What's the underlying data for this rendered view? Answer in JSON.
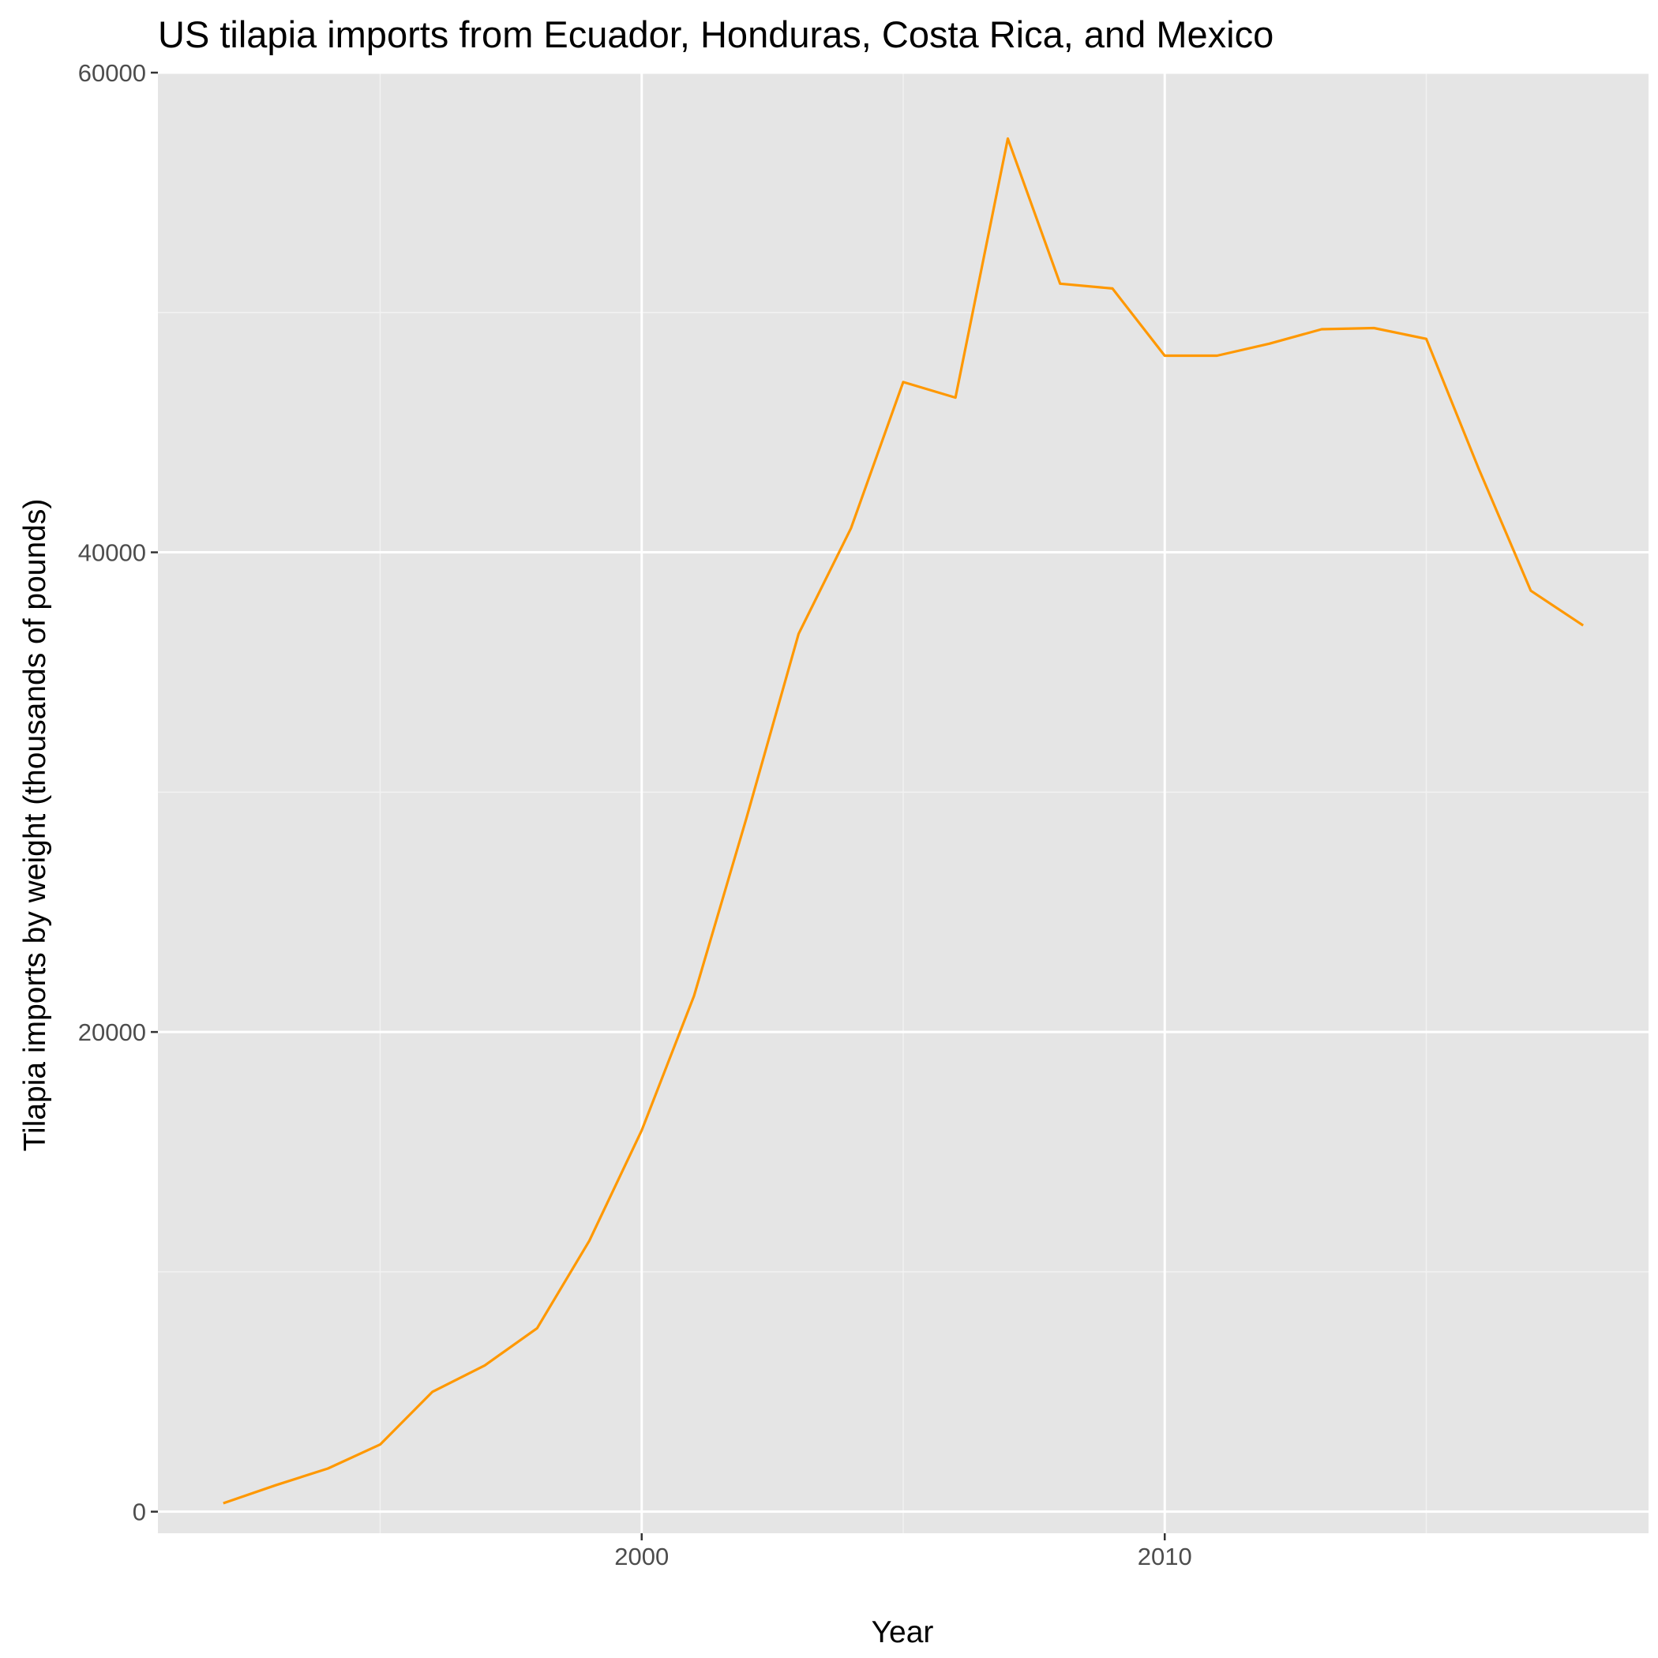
{
  "chart_data": {
    "type": "line",
    "title": "US tilapia imports from Ecuador, Honduras, Costa Rica, and Mexico",
    "xlabel": "Year",
    "ylabel": "Tilapia imports by weight (thousands of pounds)",
    "xlim": [
      1990.75,
      2019.25
    ],
    "ylim": [
      -900,
      60000
    ],
    "x_ticks": [
      2000,
      2010
    ],
    "x_minor": [
      1995,
      2005,
      2015
    ],
    "y_ticks": [
      0,
      20000,
      40000,
      60000
    ],
    "y_minor": [
      10000,
      30000,
      50000
    ],
    "grid": true,
    "legend": "none",
    "series": [
      {
        "color": "#FF9800",
        "x": [
          1992,
          1993,
          1994,
          1995,
          1996,
          1997,
          1998,
          1999,
          2000,
          2001,
          2002,
          2003,
          2004,
          2005,
          2006,
          2007,
          2008,
          2009,
          2010,
          2011,
          2012,
          2013,
          2014,
          2015,
          2016,
          2017,
          2018
        ],
        "values": [
          350,
          1100,
          1800,
          2800,
          5000,
          6100,
          7650,
          11300,
          15900,
          21500,
          28900,
          36600,
          41000,
          47100,
          46450,
          57250,
          51200,
          51000,
          48200,
          48200,
          48700,
          49300,
          49350,
          48900,
          43500,
          38400,
          36950
        ]
      }
    ]
  },
  "colors": {
    "panel_background": "#E5E5E5",
    "grid_major": "#FFFFFF",
    "grid_minor": "#F2F2F2",
    "tick_text": "#4D4D4D",
    "tick_marks": "#333333"
  }
}
